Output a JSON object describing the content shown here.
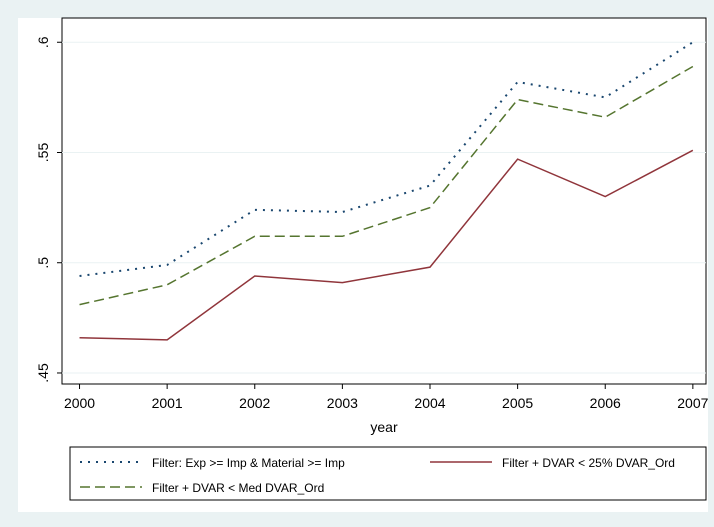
{
  "chart_data": {
    "type": "line",
    "xlabel": "year",
    "x": [
      2000,
      2001,
      2002,
      2003,
      2004,
      2005,
      2006,
      2007
    ],
    "series": [
      {
        "name": "Filter: Exp >= Imp & Material >= Imp",
        "color": "#1a476f",
        "style": "dotted",
        "values": [
          0.494,
          0.499,
          0.524,
          0.523,
          0.535,
          0.582,
          0.575,
          0.6
        ]
      },
      {
        "name": "Filter + DVAR < 25% DVAR_Ord",
        "color": "#90353b",
        "style": "solid",
        "values": [
          0.466,
          0.465,
          0.494,
          0.491,
          0.498,
          0.547,
          0.53,
          0.551
        ]
      },
      {
        "name": "Filter + DVAR < Med DVAR_Ord",
        "color": "#55752f",
        "style": "dashed",
        "values": [
          0.481,
          0.49,
          0.512,
          0.512,
          0.525,
          0.574,
          0.566,
          0.589
        ]
      }
    ],
    "xlim": [
      1999.8,
      2007.15
    ],
    "xticks": [
      2000,
      2001,
      2002,
      2003,
      2004,
      2005,
      2006,
      2007
    ],
    "ylim": [
      0.445,
      0.611
    ],
    "yticks": [
      {
        "value": 0.45,
        "label": ".45"
      },
      {
        "value": 0.5,
        "label": ".5"
      },
      {
        "value": 0.55,
        "label": ".55"
      },
      {
        "value": 0.6,
        "label": ".6"
      }
    ],
    "grid": true
  }
}
